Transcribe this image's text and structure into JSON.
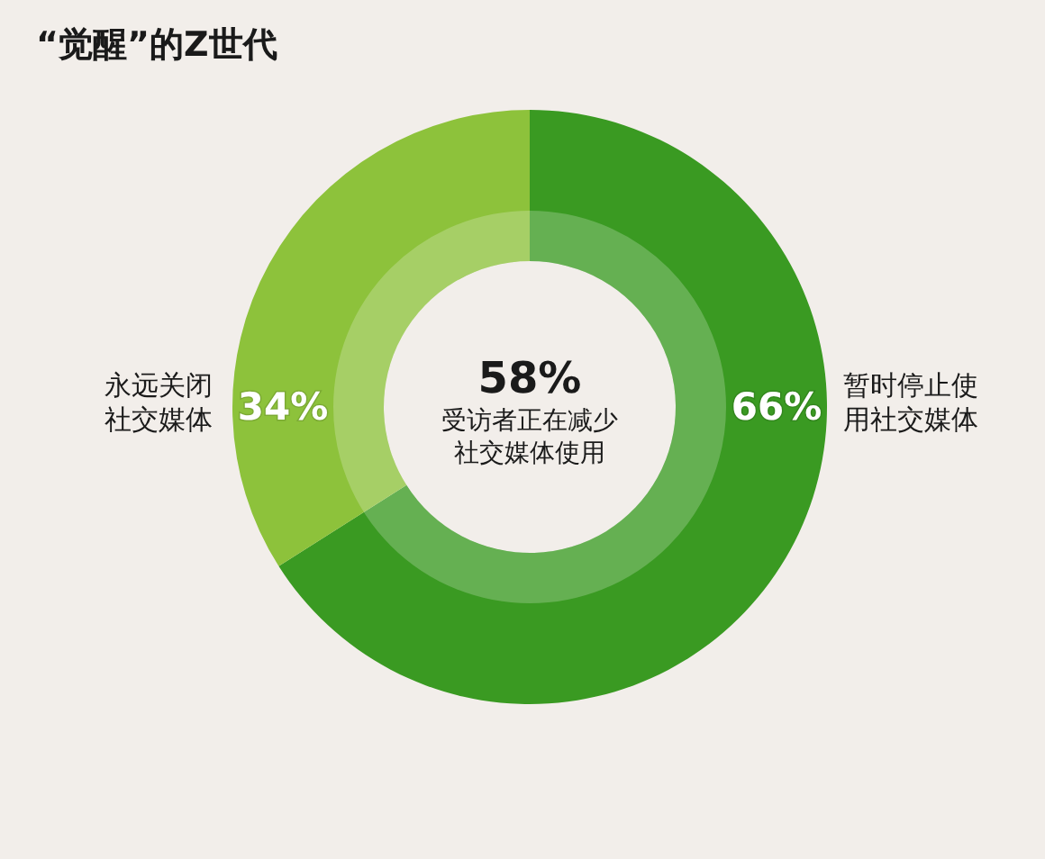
{
  "chart_data": {
    "type": "donut",
    "title": "“觉醒”的Z世代",
    "categories": [
      "暂时停止使用社交媒体",
      "永远关闭社交媒体"
    ],
    "values": [
      66,
      34
    ],
    "colors": [
      "#3a9a22",
      "#8dc23b"
    ],
    "value_labels": [
      "66%",
      "34%"
    ],
    "annotations": [
      "58%",
      "受访者正在减少社交媒体使用"
    ]
  }
}
